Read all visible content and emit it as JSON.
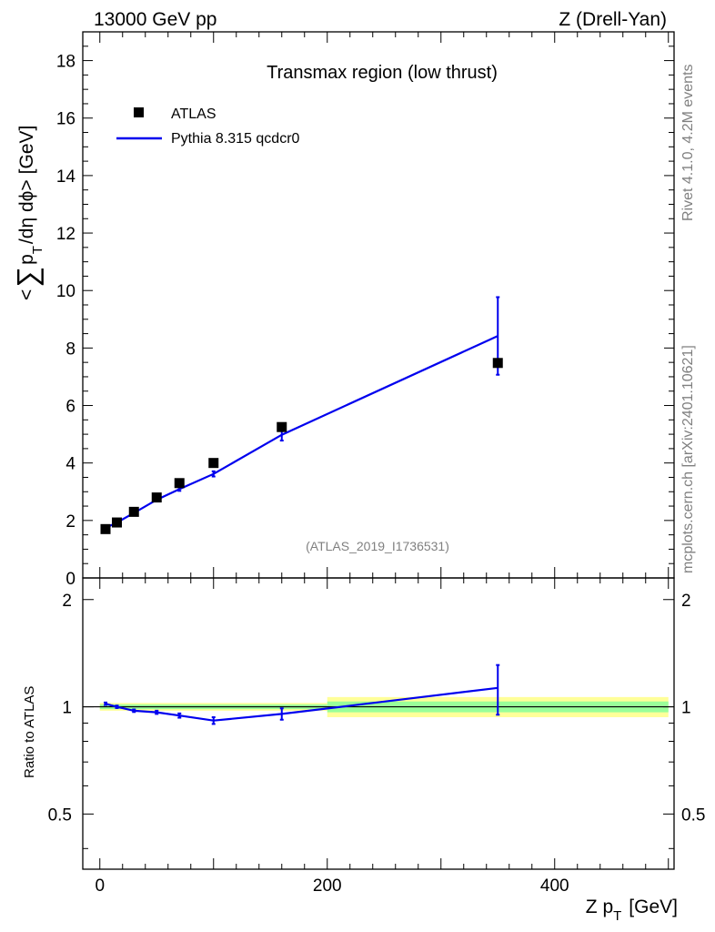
{
  "header": {
    "left": "13000 GeV pp",
    "right": "Z (Drell-Yan)"
  },
  "side_labels": {
    "rivet": "Rivet 4.1.0,  4.2M events",
    "mcplots": "mcplots.cern.ch [arXiv:2401.10621]"
  },
  "colors": {
    "mc": "#0000ee",
    "data": "#000000",
    "band_outer": "#ffff99",
    "band_inner": "#99ff99",
    "watermark": "#808080"
  },
  "chart_data": [
    {
      "type": "scatter",
      "title": "Transmax region (low thrust)",
      "watermark": "(ATLAS_2019_I1736531)",
      "ylabel_parts": {
        "lt": "<",
        "sum": "∑",
        "p": "p",
        "sub": "T",
        "rest": "/dη dϕ>",
        "unit": "[GeV]"
      },
      "xlim": [
        -15,
        505
      ],
      "ylim": [
        0,
        19
      ],
      "yticks": [
        0,
        2,
        4,
        6,
        8,
        10,
        12,
        14,
        16,
        18
      ],
      "ytick_labels": [
        "0",
        "2",
        "4",
        "6",
        "8",
        "10",
        "12",
        "14",
        "16",
        "18"
      ],
      "legend": {
        "position": "top-left",
        "entries": [
          {
            "label": "ATLAS",
            "kind": "marker"
          },
          {
            "label": "Pythia 8.315 qcdcr0",
            "kind": "line"
          }
        ]
      },
      "series": [
        {
          "name": "ATLAS",
          "x": [
            5,
            15,
            30,
            50,
            70,
            100,
            160,
            350
          ],
          "y": [
            1.7,
            1.93,
            2.3,
            2.8,
            3.3,
            4.0,
            5.25,
            7.48
          ]
        },
        {
          "name": "Pythia 8.315 qcdcr0",
          "x": [
            5,
            15,
            30,
            50,
            70,
            100,
            160,
            350
          ],
          "y": [
            1.74,
            1.93,
            2.26,
            2.72,
            3.09,
            3.62,
            4.98,
            8.42
          ],
          "err": [
            0.02,
            0.02,
            0.03,
            0.04,
            0.06,
            0.09,
            0.2,
            1.35
          ]
        }
      ]
    },
    {
      "type": "line",
      "ylabel": "Ratio to ATLAS",
      "xlabel_parts": {
        "z": "Z p",
        "sub": "T",
        "unit": "[GeV]"
      },
      "xlim": [
        -15,
        505
      ],
      "ylim": [
        0.35,
        2.3
      ],
      "yticks": [
        0.5,
        1,
        2
      ],
      "ytick_labels": [
        "0.5",
        "1",
        "2"
      ],
      "xticks": [
        0,
        200,
        400
      ],
      "xtick_labels": [
        "0",
        "200",
        "400"
      ],
      "bands": [
        {
          "x0": 0,
          "x1": 200,
          "outer": [
            0.975,
            1.025
          ],
          "inner": [
            0.985,
            1.015
          ]
        },
        {
          "x0": 200,
          "x1": 500,
          "outer": [
            0.935,
            1.065
          ],
          "inner": [
            0.965,
            1.035
          ]
        }
      ],
      "series": [
        {
          "name": "Pythia 8.315 qcdcr0 / ATLAS",
          "x": [
            5,
            15,
            30,
            50,
            70,
            100,
            160,
            350
          ],
          "y": [
            1.02,
            1.0,
            0.975,
            0.965,
            0.945,
            0.915,
            0.955,
            1.13
          ],
          "err": [
            0.008,
            0.008,
            0.008,
            0.01,
            0.013,
            0.02,
            0.035,
            0.18
          ]
        }
      ]
    }
  ]
}
